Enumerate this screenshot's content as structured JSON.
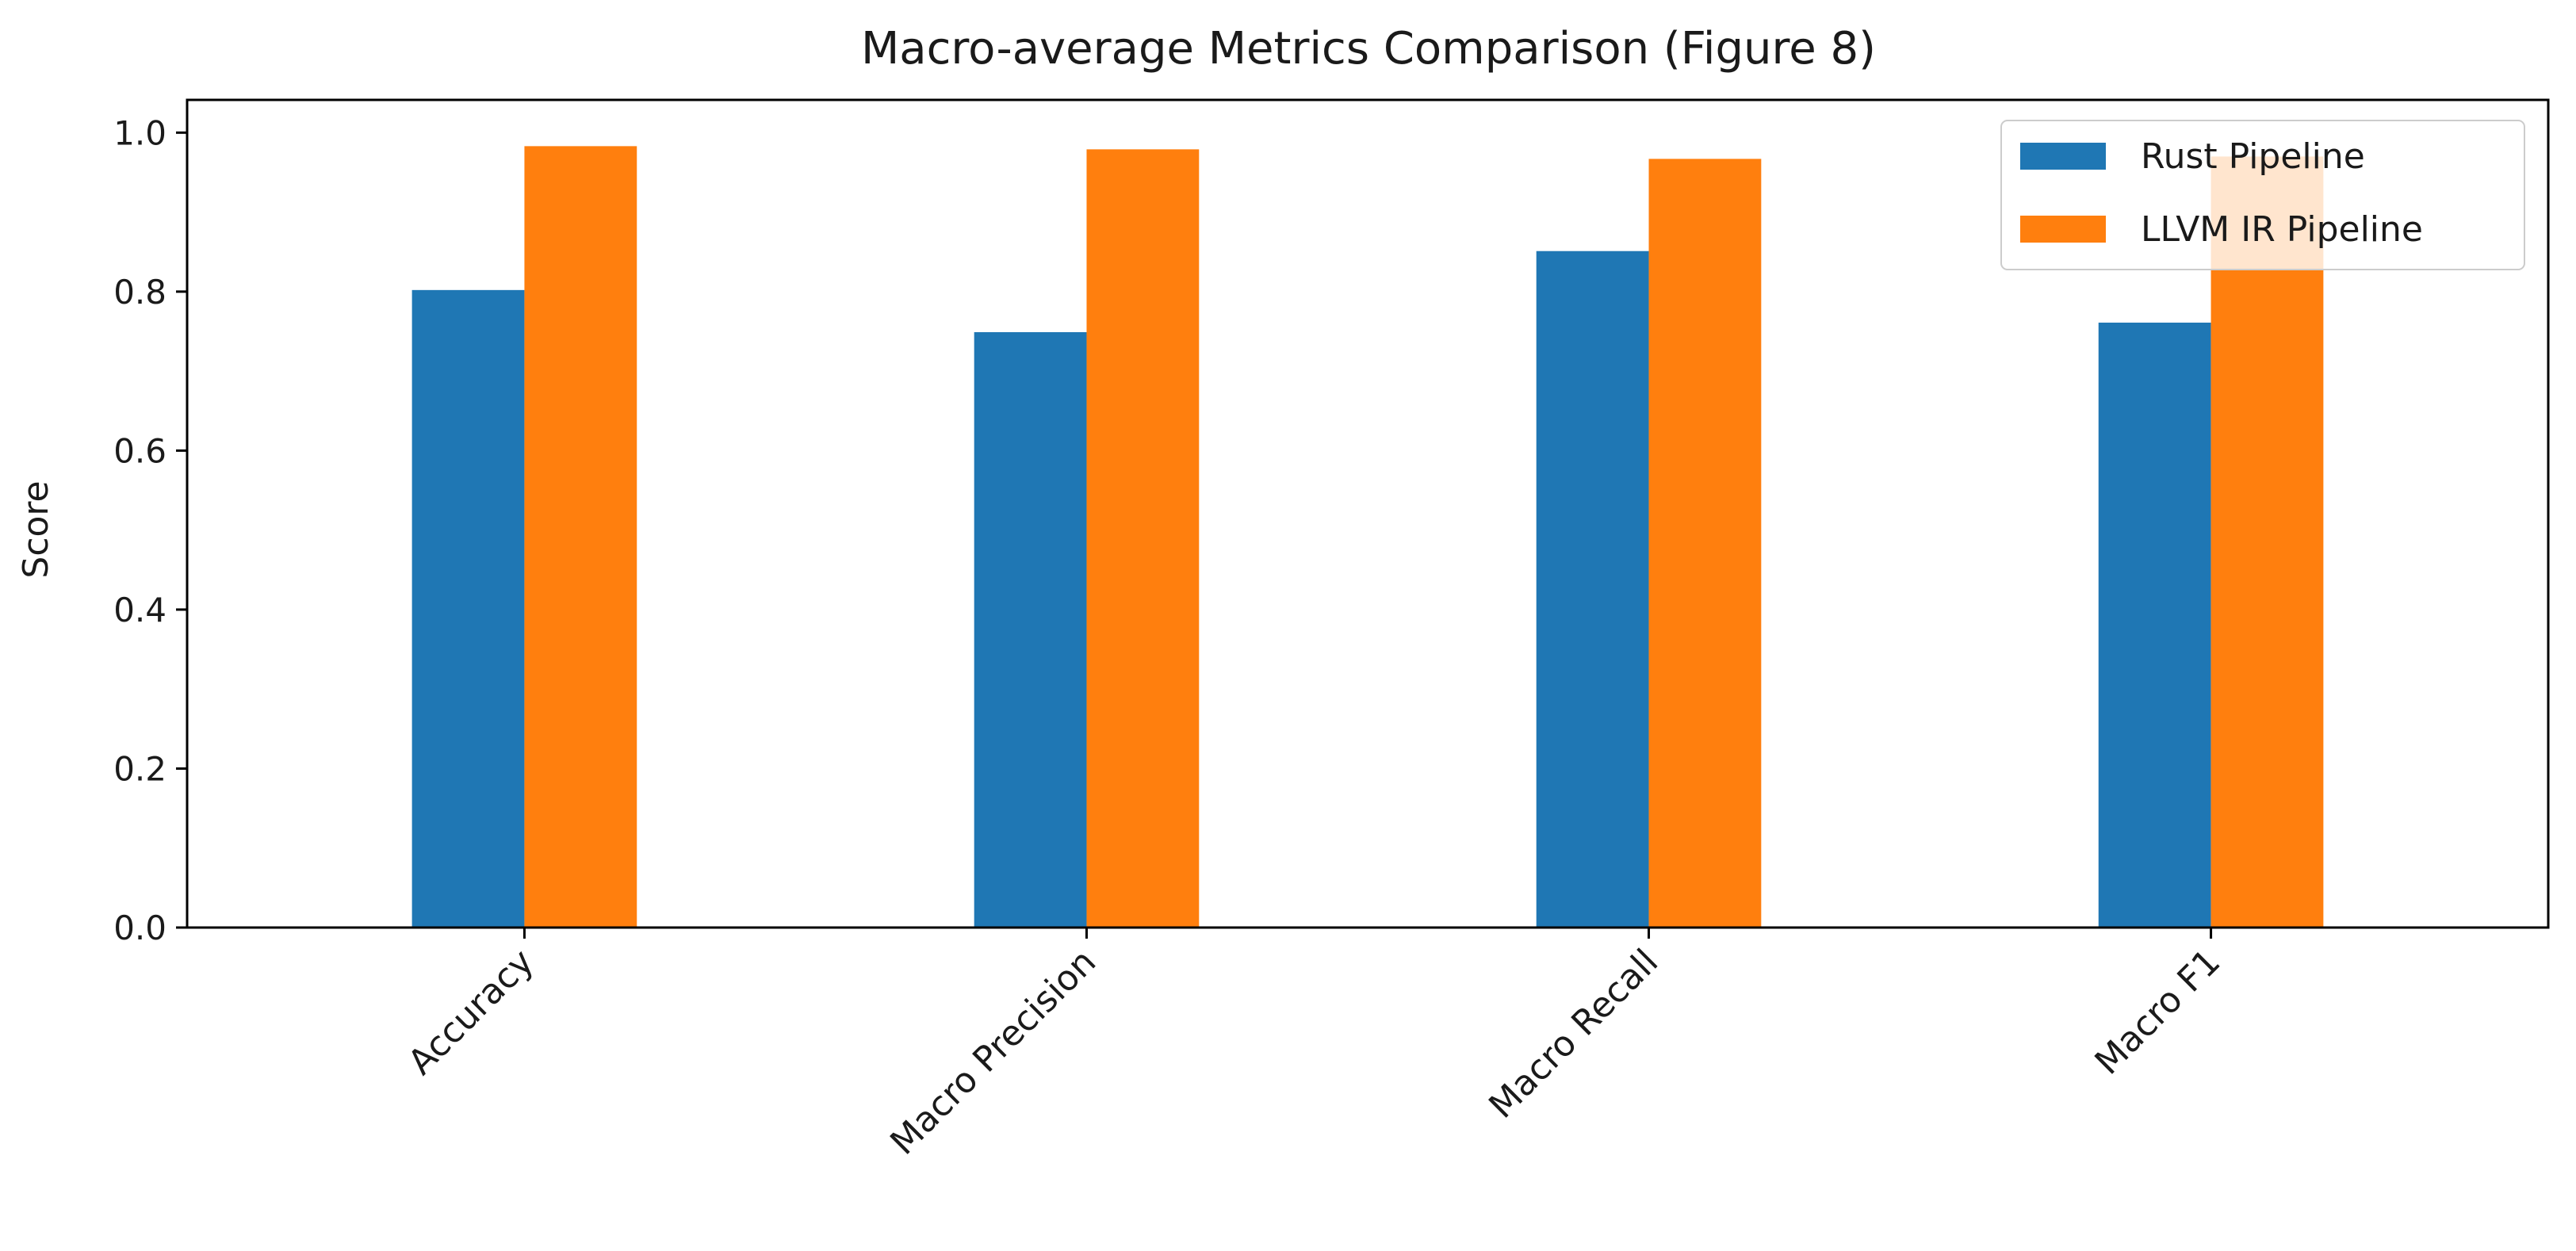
{
  "chart_data": {
    "type": "bar",
    "title": "Macro-average Metrics Comparison (Figure 8)",
    "xlabel": "",
    "ylabel": "Score",
    "categories": [
      "Accuracy",
      "Macro Precision",
      "Macro Recall",
      "Macro F1"
    ],
    "series": [
      {
        "name": "Rust Pipeline",
        "color": "#1f77b4",
        "values": [
          0.802,
          0.749,
          0.851,
          0.761
        ]
      },
      {
        "name": "LLVM IR Pipeline",
        "color": "#ff7f0e",
        "values": [
          0.983,
          0.979,
          0.967,
          0.97
        ]
      }
    ],
    "ylim": [
      0,
      1.0
    ],
    "yticks": [
      "0.0",
      "0.2",
      "0.4",
      "0.6",
      "0.8",
      "1.0"
    ],
    "legend": "top-right",
    "grid": false
  }
}
